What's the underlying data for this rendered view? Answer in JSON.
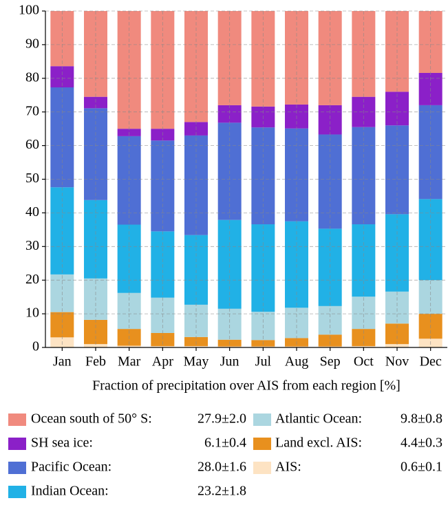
{
  "chart_data": {
    "type": "stacked_bar",
    "xlabel": "Fraction of precipitation over AIS from each region [%]",
    "categories": [
      "Jan",
      "Feb",
      "Mar",
      "Apr",
      "May",
      "Jun",
      "Jul",
      "Aug",
      "Sep",
      "Oct",
      "Nov",
      "Dec"
    ],
    "ylim": [
      0,
      100
    ],
    "yticks": [
      0,
      10,
      20,
      30,
      40,
      50,
      60,
      70,
      80,
      90,
      100
    ],
    "grid": true,
    "series": [
      {
        "name": "AIS:",
        "stat": "0.6±0.1",
        "color": "#fde3c3",
        "values": [
          3.0,
          1.0,
          0.5,
          0.4,
          0.4,
          0.3,
          0.3,
          0.3,
          0.3,
          0.4,
          1.0,
          2.6
        ]
      },
      {
        "name": "Land excl. AIS:",
        "stat": "4.4±0.3",
        "color": "#e8901e",
        "values": [
          7.5,
          7.2,
          5.0,
          3.9,
          2.7,
          2.0,
          1.9,
          2.5,
          3.5,
          5.1,
          6.1,
          7.4
        ]
      },
      {
        "name": "Atlantic Ocean:",
        "stat": "9.8±0.8",
        "color": "#abd6e0",
        "values": [
          11.2,
          12.3,
          10.7,
          10.5,
          9.6,
          9.2,
          8.4,
          9.0,
          8.5,
          9.6,
          9.5,
          10.0
        ]
      },
      {
        "name": "Indian Ocean:",
        "stat": "23.2±1.8",
        "color": "#21b1e6",
        "values": [
          25.9,
          23.3,
          20.3,
          19.7,
          20.7,
          26.4,
          26.0,
          25.7,
          23.0,
          21.5,
          23.0,
          24.1
        ]
      },
      {
        "name": "Pacific Ocean:",
        "stat": "28.0±1.6",
        "color": "#4f6fd4",
        "values": [
          29.7,
          27.3,
          26.3,
          27.0,
          29.6,
          28.9,
          28.8,
          27.6,
          28.0,
          28.9,
          26.4,
          27.9
        ]
      },
      {
        "name": "SH sea ice:",
        "stat": "6.1±0.4",
        "color": "#8b20c8",
        "values": [
          6.3,
          3.4,
          2.2,
          3.5,
          4.0,
          5.2,
          6.2,
          7.1,
          8.7,
          9.0,
          10.0,
          9.6
        ]
      },
      {
        "name": "Ocean south of 50° S:",
        "stat": "27.9±2.0",
        "color": "#f08a7e",
        "values": [
          16.4,
          25.5,
          35.0,
          35.0,
          33.0,
          28.0,
          28.4,
          27.8,
          28.0,
          25.5,
          24.0,
          18.4
        ]
      }
    ]
  }
}
